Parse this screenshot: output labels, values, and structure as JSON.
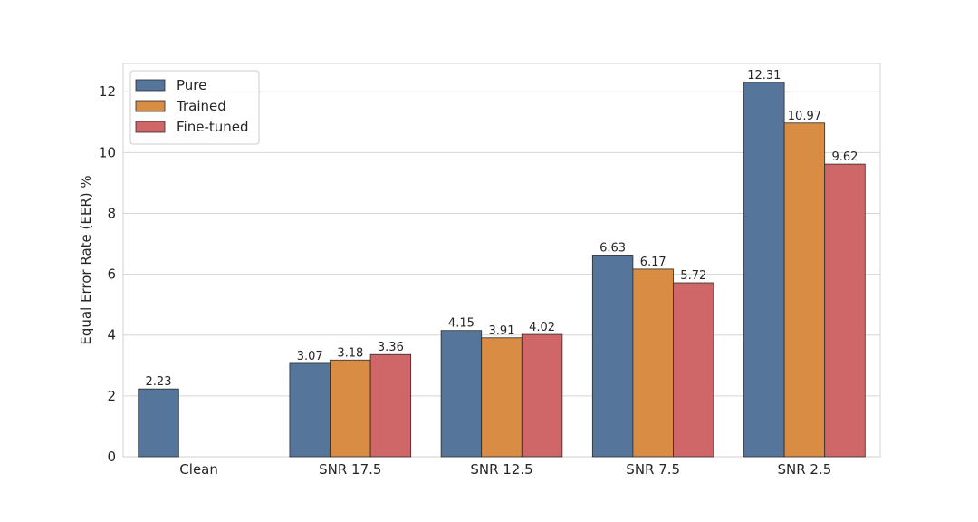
{
  "chart_data": {
    "type": "bar",
    "title": "",
    "xlabel": "",
    "ylabel": "Equal Error Rate (EER) %",
    "ylim": [
      0,
      12.93
    ],
    "yticks": [
      0,
      2,
      4,
      6,
      8,
      10,
      12
    ],
    "grid": true,
    "legend_position": "top-left",
    "categories": [
      "Clean",
      "SNR 17.5",
      "SNR 12.5",
      "SNR 7.5",
      "SNR 2.5"
    ],
    "series": [
      {
        "name": "Pure",
        "color": "#55769a",
        "values": [
          2.23,
          3.07,
          4.15,
          6.63,
          12.31
        ]
      },
      {
        "name": "Trained",
        "color": "#d98c43",
        "values": [
          null,
          3.18,
          3.91,
          6.17,
          10.97
        ]
      },
      {
        "name": "Fine-tuned",
        "color": "#cf6667",
        "values": [
          null,
          3.36,
          4.02,
          5.72,
          9.62
        ]
      }
    ]
  }
}
